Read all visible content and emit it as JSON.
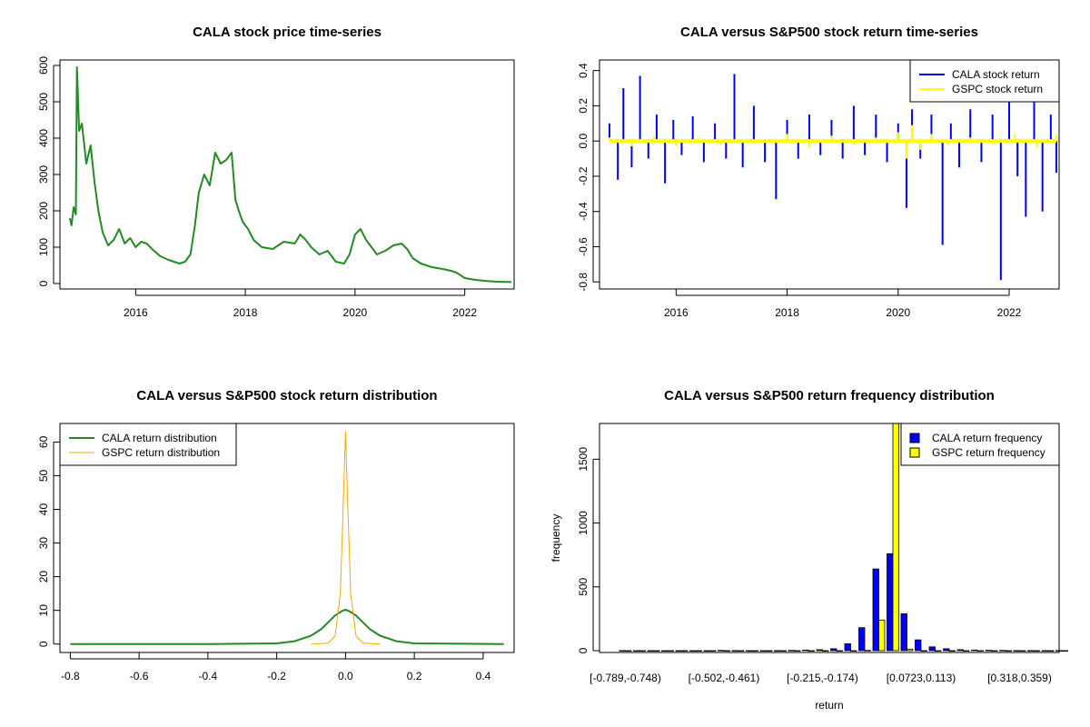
{
  "chart_data": [
    {
      "type": "line",
      "title": "CALA stock price time-series",
      "xlabel": "",
      "ylabel": "",
      "xlim": [
        2014.62,
        2022.9
      ],
      "ylim": [
        0,
        600
      ],
      "x_ticks": [
        "2016",
        "2018",
        "2020",
        "2022"
      ],
      "y_ticks": [
        "0",
        "100",
        "200",
        "300",
        "400",
        "500",
        "600"
      ],
      "colors": {
        "line": "#228b22"
      },
      "series": [
        {
          "x": [
            2014.8,
            2014.83,
            2014.87,
            2014.91,
            2014.93,
            2014.97,
            2015.02,
            2015.1,
            2015.18,
            2015.25,
            2015.32,
            2015.4,
            2015.5,
            2015.6,
            2015.7,
            2015.8,
            2015.9,
            2016.0,
            2016.1,
            2016.2,
            2016.3,
            2016.45,
            2016.6,
            2016.8,
            2016.9,
            2017.0,
            2017.08,
            2017.15,
            2017.25,
            2017.35,
            2017.45,
            2017.55,
            2017.65,
            2017.75,
            2017.82,
            2017.88,
            2017.95,
            2018.05,
            2018.15,
            2018.3,
            2018.5,
            2018.7,
            2018.9,
            2019.0,
            2019.1,
            2019.2,
            2019.35,
            2019.5,
            2019.65,
            2019.8,
            2019.9,
            2020.0,
            2020.1,
            2020.2,
            2020.3,
            2020.4,
            2020.55,
            2020.7,
            2020.85,
            2020.95,
            2021.05,
            2021.2,
            2021.4,
            2021.6,
            2021.75,
            2021.85,
            2022.0,
            2022.2,
            2022.4,
            2022.6,
            2022.85
          ],
          "y": [
            180,
            160,
            210,
            190,
            595,
            420,
            440,
            330,
            380,
            280,
            200,
            140,
            105,
            120,
            150,
            110,
            125,
            100,
            115,
            110,
            95,
            75,
            65,
            55,
            60,
            80,
            160,
            250,
            300,
            270,
            360,
            330,
            340,
            360,
            230,
            200,
            170,
            150,
            120,
            100,
            95,
            115,
            110,
            135,
            120,
            100,
            80,
            90,
            60,
            55,
            80,
            135,
            150,
            120,
            100,
            80,
            90,
            105,
            110,
            95,
            70,
            55,
            45,
            40,
            35,
            30,
            15,
            10,
            7,
            5,
            4
          ]
        }
      ]
    },
    {
      "type": "line",
      "title": "CALA versus S&P500 stock return time-series",
      "xlabel": "",
      "ylabel": "",
      "xlim": [
        2014.62,
        2022.9
      ],
      "ylim": [
        -0.8,
        0.4
      ],
      "x_ticks": [
        "2016",
        "2018",
        "2020",
        "2022"
      ],
      "y_ticks": [
        "-0.8",
        "-0.6",
        "-0.4",
        "-0.2",
        "0.0",
        "0.2",
        "0.4"
      ],
      "legend_position": "top-right",
      "series": [
        {
          "name": "CALA stock return",
          "color": "#0000ff",
          "x": [
            2014.8,
            2014.95,
            2015.05,
            2015.2,
            2015.35,
            2015.5,
            2015.65,
            2015.8,
            2015.95,
            2016.1,
            2016.3,
            2016.5,
            2016.7,
            2016.9,
            2017.05,
            2017.2,
            2017.4,
            2017.6,
            2017.8,
            2018.0,
            2018.2,
            2018.4,
            2018.6,
            2018.8,
            2019.0,
            2019.2,
            2019.4,
            2019.6,
            2019.8,
            2020.0,
            2020.15,
            2020.25,
            2020.4,
            2020.6,
            2020.8,
            2020.95,
            2021.1,
            2021.3,
            2021.5,
            2021.7,
            2021.85,
            2022.0,
            2022.15,
            2022.3,
            2022.45,
            2022.6,
            2022.75,
            2022.85
          ],
          "y": [
            0.1,
            -0.22,
            0.3,
            -0.15,
            0.37,
            -0.1,
            0.15,
            -0.24,
            0.12,
            -0.08,
            0.14,
            -0.12,
            0.1,
            -0.1,
            0.38,
            -0.15,
            0.2,
            -0.12,
            -0.33,
            0.12,
            -0.1,
            0.15,
            -0.08,
            0.12,
            -0.1,
            0.2,
            -0.08,
            0.15,
            -0.12,
            0.1,
            -0.38,
            0.18,
            -0.1,
            0.15,
            -0.59,
            0.1,
            -0.15,
            0.18,
            -0.12,
            0.15,
            -0.79,
            0.3,
            -0.2,
            -0.43,
            0.25,
            -0.4,
            0.15,
            -0.18
          ]
        },
        {
          "name": "GSPC stock return",
          "color": "#ffff00",
          "x": [
            2014.8,
            2015.2,
            2015.6,
            2016.0,
            2016.4,
            2016.8,
            2017.2,
            2017.6,
            2018.0,
            2018.4,
            2018.8,
            2019.2,
            2019.6,
            2020.0,
            2020.15,
            2020.25,
            2020.4,
            2020.6,
            2020.9,
            2021.3,
            2021.7,
            2022.1,
            2022.5,
            2022.85
          ],
          "y": [
            0.02,
            -0.03,
            0.03,
            -0.03,
            0.02,
            -0.02,
            0.01,
            -0.01,
            0.04,
            -0.04,
            0.03,
            -0.02,
            0.02,
            0.05,
            -0.1,
            0.09,
            -0.05,
            0.04,
            -0.02,
            0.02,
            -0.02,
            0.04,
            -0.04,
            0.03
          ]
        }
      ]
    },
    {
      "type": "line",
      "title": "CALA versus S&P500 stock return distribution",
      "xlabel": "",
      "ylabel": "",
      "xlim": [
        -0.83,
        0.49
      ],
      "ylim": [
        0,
        65
      ],
      "x_ticks": [
        "-0.8",
        "-0.6",
        "-0.4",
        "-0.2",
        "0.0",
        "0.2",
        "0.4"
      ],
      "y_ticks": [
        "0",
        "10",
        "20",
        "30",
        "40",
        "50",
        "60"
      ],
      "legend_position": "top-left",
      "series": [
        {
          "name": "CALA return distribution",
          "color": "#228b22",
          "x": [
            -0.8,
            -0.4,
            -0.2,
            -0.15,
            -0.1,
            -0.07,
            -0.05,
            -0.03,
            -0.01,
            0.0,
            0.01,
            0.03,
            0.05,
            0.07,
            0.1,
            0.15,
            0.2,
            0.46
          ],
          "y": [
            0,
            0,
            0.2,
            0.8,
            2.5,
            4.5,
            6.5,
            8.5,
            9.8,
            10.2,
            9.8,
            8.5,
            6.5,
            4.5,
            2.5,
            0.8,
            0.2,
            0
          ]
        },
        {
          "name": "GSPC return distribution",
          "color": "#ffa500",
          "x": [
            -0.1,
            -0.05,
            -0.03,
            -0.015,
            -0.007,
            0.0,
            0.007,
            0.015,
            0.03,
            0.05,
            0.1
          ],
          "y": [
            0,
            0.3,
            2.5,
            15,
            40,
            63,
            40,
            15,
            2.5,
            0.3,
            0
          ]
        }
      ]
    },
    {
      "type": "bar",
      "title": "CALA versus S&P500 return frequency distribution",
      "xlabel": "return",
      "ylabel": "frequency",
      "ylim": [
        0,
        1780
      ],
      "y_ticks": [
        "0",
        "500",
        "1000",
        "1500"
      ],
      "x_tick_labels": [
        "[-0.789,-0.748)",
        "[-0.502,-0.461)",
        "[-0.215,-0.174)",
        "[0.0723,0.113)",
        "[0.318,0.359)"
      ],
      "legend_position": "top-right",
      "series": [
        {
          "name": "CALA return frequency",
          "color": "#0000ff",
          "values": [
            1,
            0,
            0,
            0,
            0,
            0,
            0,
            2,
            1,
            0,
            0,
            1,
            2,
            5,
            8,
            15,
            55,
            180,
            640,
            760,
            290,
            85,
            30,
            15,
            8,
            5,
            3,
            2,
            1,
            1,
            1,
            1
          ]
        },
        {
          "name": "GSPC return frequency",
          "color": "#ffff00",
          "values": [
            0,
            0,
            0,
            0,
            0,
            0,
            0,
            0,
            0,
            0,
            0,
            0,
            0,
            0,
            0,
            0,
            0,
            2,
            240,
            1780,
            12,
            0,
            0,
            0,
            0,
            0,
            0,
            0,
            0,
            0,
            0,
            0
          ]
        }
      ]
    }
  ]
}
